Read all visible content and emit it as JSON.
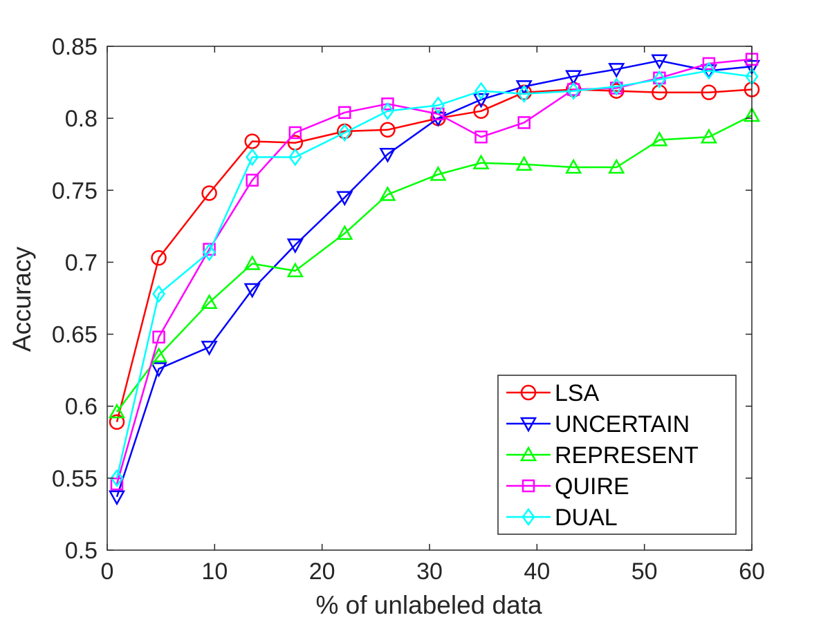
{
  "chart_data": {
    "type": "line",
    "title": "",
    "xlabel": "% of unlabeled data",
    "ylabel": "Accuracy",
    "xlim": [
      0,
      60
    ],
    "ylim": [
      0.5,
      0.85
    ],
    "xticks": [
      0,
      10,
      20,
      30,
      40,
      50,
      60
    ],
    "xtick_labels": [
      "0",
      "10",
      "20",
      "30",
      "40",
      "50",
      "60"
    ],
    "yticks": [
      0.5,
      0.55,
      0.6,
      0.65,
      0.7,
      0.75,
      0.8,
      0.85
    ],
    "ytick_labels": [
      "0.5",
      "0.55",
      "0.6",
      "0.65",
      "0.7",
      "0.75",
      "0.8",
      "0.85"
    ],
    "grid": false,
    "legend_position": "bottom-right",
    "x": [
      0.9,
      4.8,
      9.5,
      13.5,
      17.5,
      22.1,
      26.1,
      30.8,
      34.8,
      38.8,
      43.4,
      47.4,
      51.4,
      56.0,
      60.0
    ],
    "series": [
      {
        "name": "LSA",
        "color": "#ff0000",
        "marker": "circle",
        "values": [
          0.589,
          0.703,
          0.748,
          0.784,
          0.783,
          0.791,
          0.792,
          0.8,
          0.805,
          0.818,
          0.82,
          0.819,
          0.818,
          0.818,
          0.82
        ]
      },
      {
        "name": "UNCERTAIN",
        "color": "#0000ff",
        "marker": "triangle-down",
        "values": [
          0.537,
          0.626,
          0.641,
          0.681,
          0.712,
          0.745,
          0.775,
          0.8,
          0.813,
          0.822,
          0.829,
          0.834,
          0.84,
          0.833,
          0.836
        ]
      },
      {
        "name": "REPRESENT",
        "color": "#00ff00",
        "marker": "triangle-up",
        "values": [
          0.596,
          0.635,
          0.672,
          0.699,
          0.694,
          0.72,
          0.747,
          0.761,
          0.769,
          0.768,
          0.766,
          0.766,
          0.785,
          0.787,
          0.802
        ]
      },
      {
        "name": "QUIRE",
        "color": "#ff00ff",
        "marker": "square",
        "values": [
          0.546,
          0.648,
          0.709,
          0.757,
          0.79,
          0.804,
          0.81,
          0.803,
          0.787,
          0.797,
          0.82,
          0.821,
          0.828,
          0.838,
          0.841
        ]
      },
      {
        "name": "DUAL",
        "color": "#00ffff",
        "marker": "diamond",
        "values": [
          0.55,
          0.678,
          0.707,
          0.773,
          0.773,
          0.79,
          0.805,
          0.809,
          0.819,
          0.817,
          0.819,
          0.822,
          0.827,
          0.833,
          0.829
        ]
      }
    ]
  }
}
